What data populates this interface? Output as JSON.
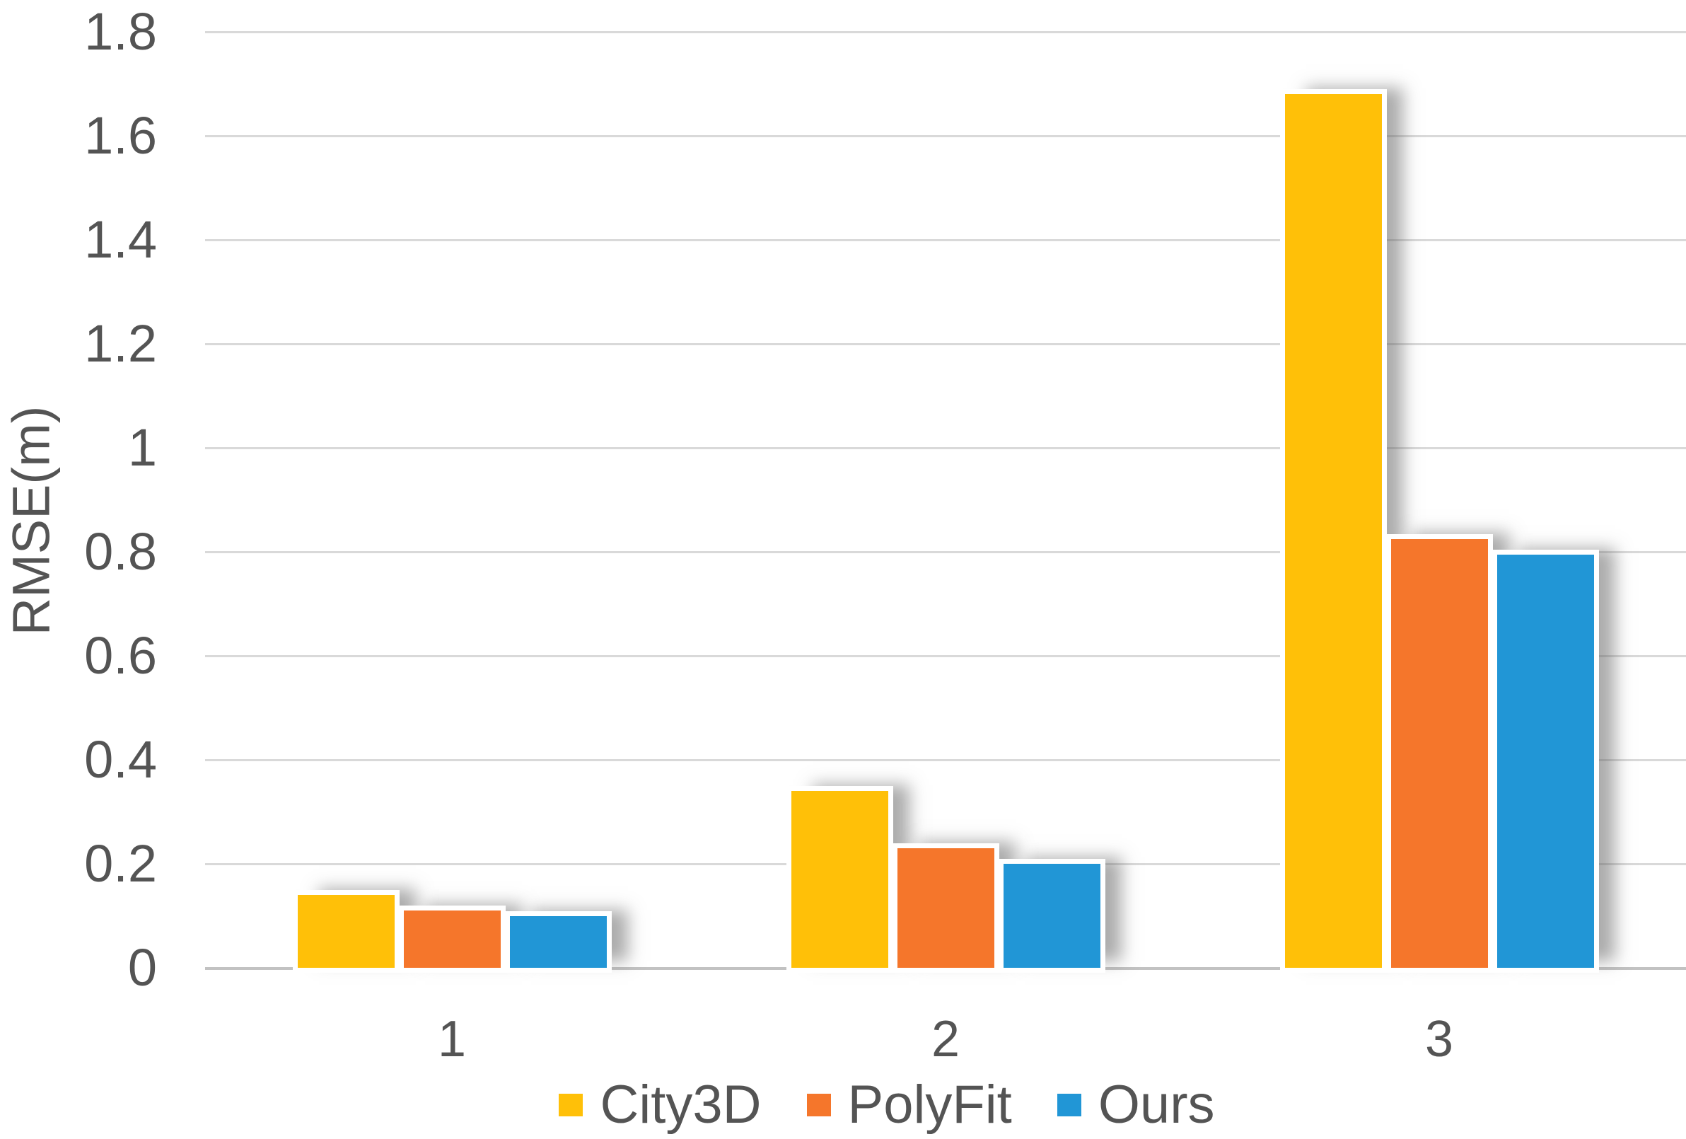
{
  "chart_data": {
    "type": "bar",
    "title": "",
    "xlabel": "",
    "ylabel": "RMSE(m)",
    "categories": [
      "1",
      "2",
      "3"
    ],
    "series": [
      {
        "name": "City3D",
        "color": "#FFC008",
        "values": [
          0.14,
          0.34,
          1.68
        ]
      },
      {
        "name": "PolyFit",
        "color": "#F5762B",
        "values": [
          0.11,
          0.23,
          0.825
        ]
      },
      {
        "name": "Ours",
        "color": "#2196D6",
        "values": [
          0.1,
          0.2,
          0.795
        ]
      }
    ],
    "ylim": [
      0,
      1.8
    ],
    "yticks": [
      "1.8",
      "1.6",
      "1.4",
      "1.2",
      "1",
      "0.8",
      "0.6",
      "0.4",
      "0.2",
      "0"
    ],
    "grid": true,
    "legend_position": "bottom"
  },
  "colors": {
    "text": "#545454",
    "gridline": "#D9D9D9",
    "axis_line": "#C2C2C2",
    "background": "#FFFFFF"
  }
}
